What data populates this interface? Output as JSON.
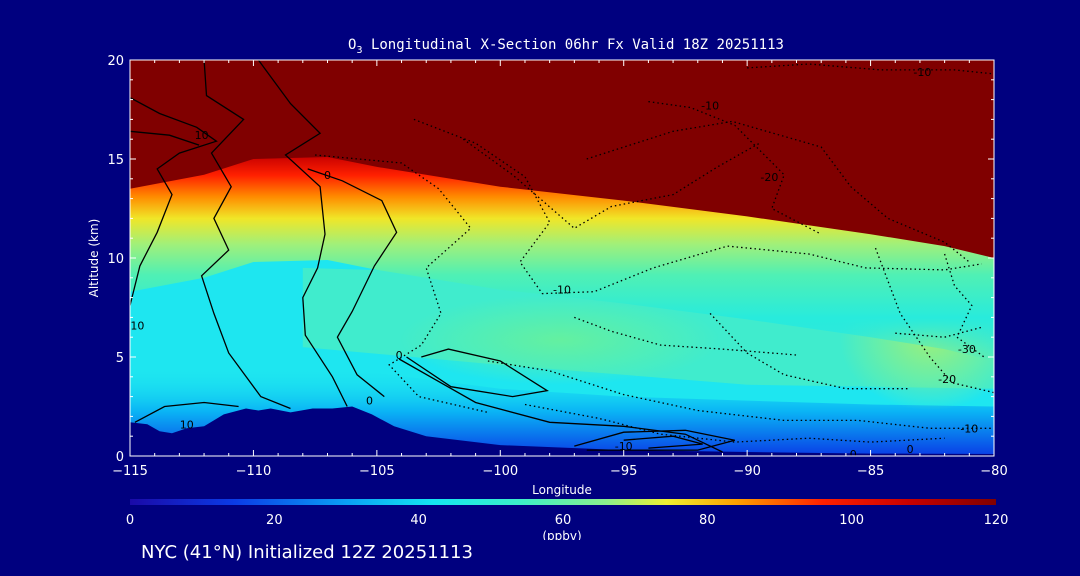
{
  "chart_data": {
    "type": "heatmap",
    "title_prefix": "O",
    "title_subscript": "3",
    "title_rest": " Longitudinal X-Section 06hr  Fx Valid 18Z 20251113",
    "xlabel": "Longitude",
    "ylabel": "Altitude (km)",
    "xlim": [
      -115,
      -80
    ],
    "ylim": [
      0,
      20
    ],
    "x_ticks": [
      -115,
      -110,
      -105,
      -100,
      -95,
      -90,
      -85,
      -80
    ],
    "x_tick_labels": [
      "−115",
      "−110",
      "−105",
      "−100",
      "−95",
      "−90",
      "−85",
      "−80"
    ],
    "y_ticks": [
      0,
      5,
      10,
      15,
      20
    ],
    "y_tick_labels": [
      "0",
      "5",
      "10",
      "15",
      "20"
    ],
    "colorbar": {
      "range": [
        0,
        120
      ],
      "ticks": [
        0,
        20,
        40,
        60,
        80,
        100,
        120
      ],
      "tick_labels": [
        "0",
        "20",
        "40",
        "60",
        "80",
        "100",
        "120"
      ],
      "unit": "(ppbv)"
    },
    "tropopause_km": [
      [
        -115,
        13.5
      ],
      [
        -112,
        14.2
      ],
      [
        -110,
        15.0
      ],
      [
        -107,
        15.1
      ],
      [
        -105,
        14.6
      ],
      [
        -100,
        13.6
      ],
      [
        -95,
        12.9
      ],
      [
        -90,
        12.1
      ],
      [
        -85,
        11.2
      ],
      [
        -82,
        10.6
      ],
      [
        -80,
        10.0
      ]
    ],
    "terrain_km": [
      [
        -115,
        1.7
      ],
      [
        -114.3,
        1.6
      ],
      [
        -113.8,
        1.25
      ],
      [
        -113.3,
        1.15
      ],
      [
        -112.7,
        1.4
      ],
      [
        -112.0,
        1.5
      ],
      [
        -111.2,
        2.1
      ],
      [
        -110.3,
        2.4
      ],
      [
        -109.8,
        2.3
      ],
      [
        -109.3,
        2.4
      ],
      [
        -108.5,
        2.2
      ],
      [
        -107.6,
        2.4
      ],
      [
        -106.8,
        2.4
      ],
      [
        -106.0,
        2.5
      ],
      [
        -105.2,
        2.1
      ],
      [
        -104.3,
        1.5
      ],
      [
        -103.0,
        1.0
      ],
      [
        -100.0,
        0.55
      ],
      [
        -95.0,
        0.3
      ],
      [
        -90.0,
        0.2
      ],
      [
        -85.0,
        0.12
      ],
      [
        -80.0,
        0.1
      ]
    ],
    "contour_labels": [
      {
        "text": "10",
        "x": -112.1,
        "y": 16.2
      },
      {
        "text": "-10",
        "x": -91.5,
        "y": 17.7
      },
      {
        "text": "-10",
        "x": -82.9,
        "y": 19.4
      },
      {
        "text": "-20",
        "x": -89.1,
        "y": 14.1
      },
      {
        "text": "0",
        "x": -107.0,
        "y": 14.2
      },
      {
        "text": "-10",
        "x": -97.5,
        "y": 8.4
      },
      {
        "text": "10",
        "x": -114.7,
        "y": 6.6
      },
      {
        "text": "0",
        "x": -104.1,
        "y": 5.1
      },
      {
        "text": "0",
        "x": -105.3,
        "y": 2.8
      },
      {
        "text": "10",
        "x": -112.7,
        "y": 1.6
      },
      {
        "text": "-30",
        "x": -81.1,
        "y": 5.4
      },
      {
        "text": "-20",
        "x": -81.9,
        "y": 3.9
      },
      {
        "text": "-10",
        "x": -95.0,
        "y": 0.5
      },
      {
        "text": "-10",
        "x": -81.0,
        "y": 1.4
      },
      {
        "text": "0",
        "x": -85.7,
        "y": 0.1
      },
      {
        "text": "0",
        "x": -83.4,
        "y": 0.35
      }
    ]
  },
  "footer": {
    "station": "NYC (41°N)",
    "initialized": " Initialized 12Z 20251113"
  },
  "colors": {
    "background": "#00007f",
    "text": "#ffffff",
    "contour": "#000000"
  }
}
